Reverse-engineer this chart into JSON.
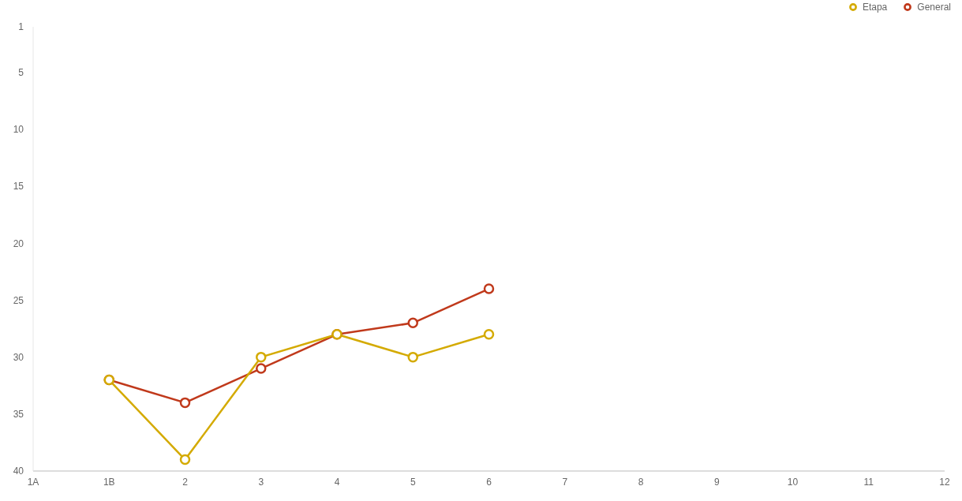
{
  "chart_data": {
    "type": "line",
    "categories": [
      "1A",
      "1B",
      "2",
      "3",
      "4",
      "5",
      "6",
      "7",
      "8",
      "9",
      "10",
      "11",
      "12"
    ],
    "series": [
      {
        "name": "Etapa",
        "color": "#d4aa00",
        "values": [
          null,
          32,
          39,
          30,
          28,
          30,
          28,
          null,
          null,
          null,
          null,
          null,
          null
        ]
      },
      {
        "name": "General",
        "color": "#c0391b",
        "values": [
          null,
          32,
          34,
          31,
          28,
          27,
          24,
          null,
          null,
          null,
          null,
          null,
          null
        ]
      }
    ],
    "ylim": [
      40,
      1
    ],
    "yticks": [
      1,
      5,
      10,
      15,
      20,
      25,
      30,
      35,
      40
    ],
    "grid": false,
    "legend": "top right",
    "marker": "circle",
    "line_style": "solid"
  }
}
